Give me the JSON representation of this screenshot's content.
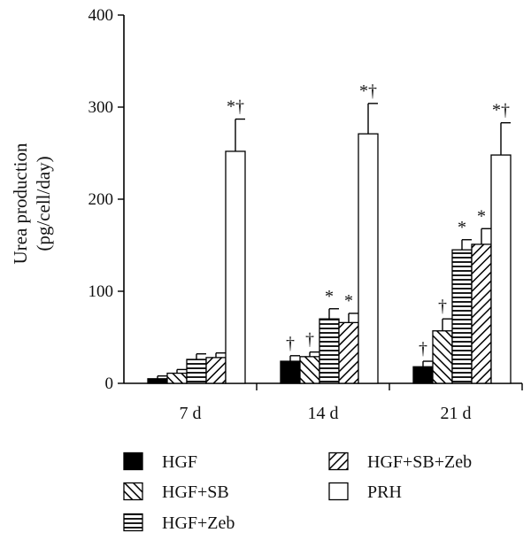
{
  "chart_data": {
    "type": "bar",
    "ylabel_lines": [
      "Urea production",
      "(pg/cell/day)"
    ],
    "ylim": [
      0,
      400
    ],
    "yticks": [
      0,
      100,
      200,
      300,
      400
    ],
    "categories": [
      "7 d",
      "14 d",
      "21 d"
    ],
    "series": [
      {
        "name": "HGF",
        "pattern": "solid",
        "values": [
          5,
          24,
          18
        ],
        "errors": [
          3,
          6,
          6
        ],
        "annotations": [
          "",
          "†",
          "†"
        ]
      },
      {
        "name": "HGF+SB",
        "pattern": "diag-back",
        "values": [
          11,
          29,
          57
        ],
        "errors": [
          4,
          5,
          13
        ],
        "annotations": [
          "",
          "†",
          "†"
        ]
      },
      {
        "name": "HGF+Zeb",
        "pattern": "horizontal",
        "values": [
          26,
          70,
          145
        ],
        "errors": [
          6,
          11,
          11
        ],
        "annotations": [
          "",
          "*",
          "*"
        ]
      },
      {
        "name": "HGF+SB+Zeb",
        "pattern": "diag-fwd",
        "values": [
          28,
          66,
          151
        ],
        "errors": [
          5,
          10,
          17
        ],
        "annotations": [
          "",
          "*",
          "*"
        ]
      },
      {
        "name": "PRH",
        "pattern": "white",
        "values": [
          252,
          271,
          248
        ],
        "errors": [
          35,
          33,
          35
        ],
        "annotations": [
          "*†",
          "*†",
          "*†"
        ]
      }
    ],
    "legend": {
      "placement": "bottom",
      "entries": [
        "HGF",
        "HGF+SB+Zeb",
        "HGF+SB",
        "PRH",
        "HGF+Zeb"
      ]
    },
    "grid": false
  }
}
